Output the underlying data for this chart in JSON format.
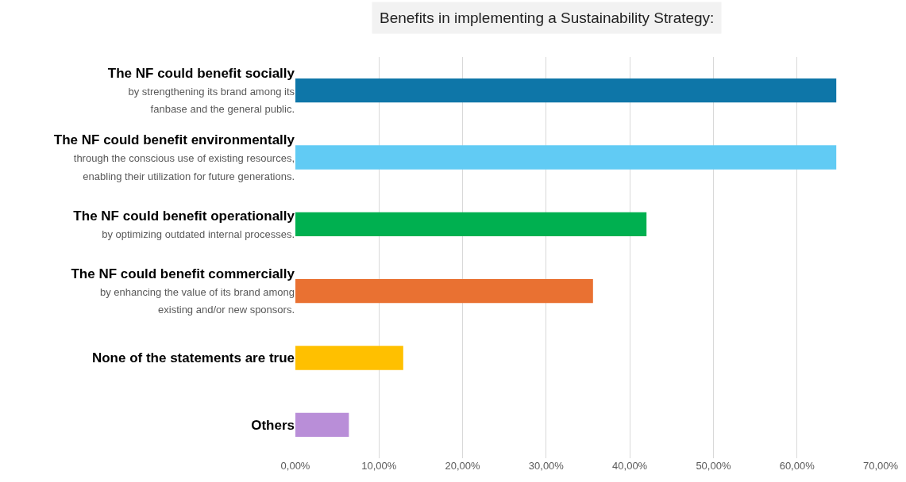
{
  "chart_data": {
    "type": "bar",
    "orientation": "horizontal",
    "title": "Benefits in implementing a Sustainability Strategy:",
    "categories": [
      "The NF could benefit socially\nby strengthening its brand among its\nfanbase and the general public.",
      "The NF could benefit environmentally\nthrough the conscious use of existing resources,\nenabling their utilization for future generations.",
      "The NF could benefit operationally\nby optimizing outdated internal processes.",
      "The NF could benefit commercially\nby enhancing the value of its brand among\nexisting and/or new sponsors.",
      "None of the statements are true",
      "Others"
    ],
    "values": [
      64.7,
      64.7,
      42.0,
      35.6,
      12.9,
      6.4
    ],
    "colors": [
      "#0e76a8",
      "#61cbf4",
      "#00b050",
      "#e97132",
      "#ffc000",
      "#b98ed8"
    ],
    "xlim": [
      0,
      70
    ],
    "xticks": [
      {
        "value": 0,
        "label": "0,00%"
      },
      {
        "value": 10,
        "label": "10,00%"
      },
      {
        "value": 20,
        "label": "20,00%"
      },
      {
        "value": 30,
        "label": "30,00%"
      },
      {
        "value": 40,
        "label": "40,00%"
      },
      {
        "value": 50,
        "label": "50,00%"
      },
      {
        "value": 60,
        "label": "60,00%"
      },
      {
        "value": 70,
        "label": "70,00%"
      }
    ],
    "grid": "x",
    "legend": false
  }
}
